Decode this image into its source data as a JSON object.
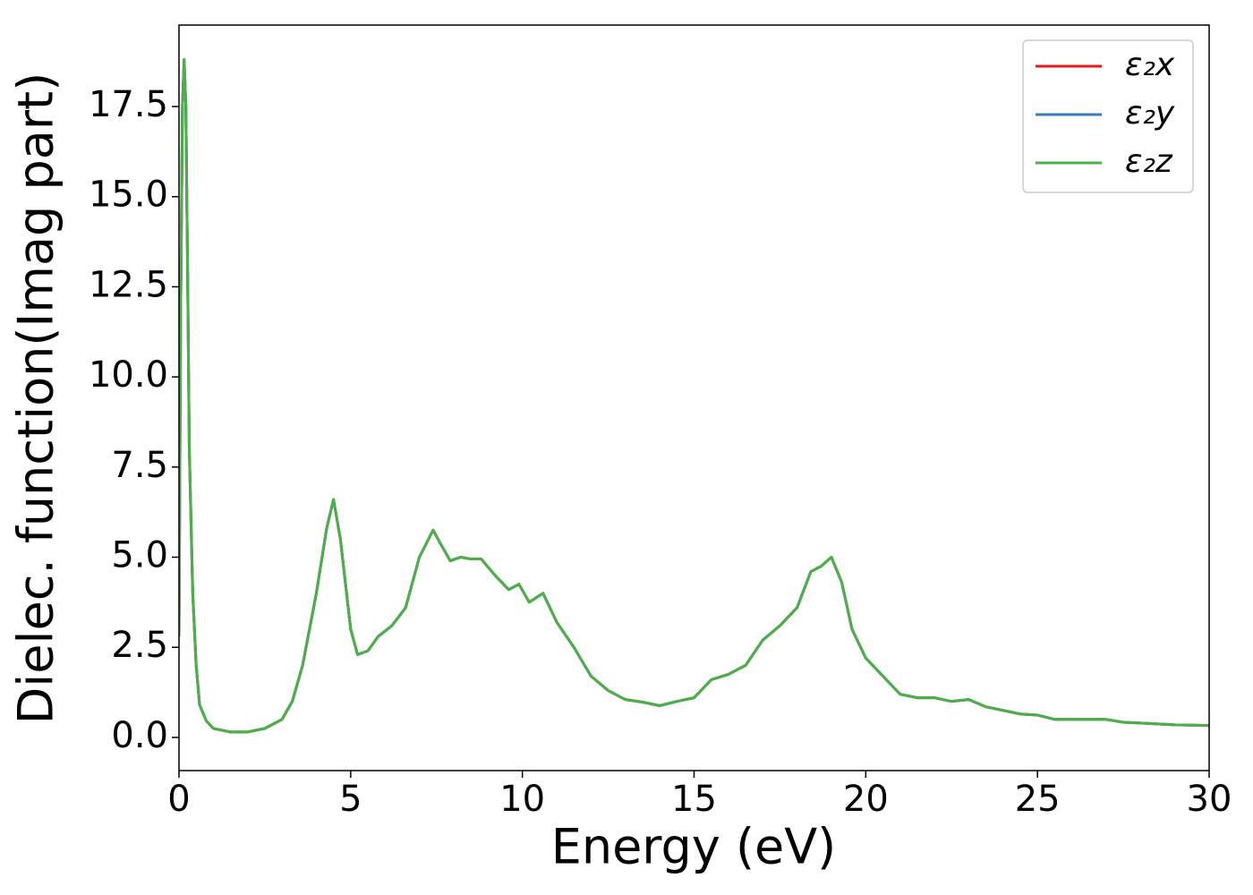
{
  "chart_data": {
    "type": "line",
    "xlabel": "Energy (eV)",
    "ylabel": "Dielec. function(Imag part)",
    "x": [
      0,
      0.05,
      0.1,
      0.15,
      0.2,
      0.25,
      0.3,
      0.4,
      0.5,
      0.6,
      0.8,
      1,
      1.5,
      2,
      2.5,
      3,
      3.3,
      3.6,
      4,
      4.3,
      4.5,
      4.7,
      5,
      5.2,
      5.5,
      5.8,
      6.2,
      6.6,
      7,
      7.4,
      7.6,
      7.9,
      8.2,
      8.5,
      8.8,
      9.2,
      9.6,
      9.9,
      10.2,
      10.6,
      11,
      11.5,
      12,
      12.5,
      13,
      13.5,
      14,
      14.5,
      15,
      15.5,
      16,
      16.5,
      17,
      17.5,
      18,
      18.4,
      18.7,
      19,
      19.3,
      19.6,
      20,
      20.5,
      21,
      21.5,
      22,
      22.5,
      23,
      23.5,
      24,
      24.5,
      25,
      25.5,
      26,
      26.5,
      27,
      27.5,
      28,
      29,
      30
    ],
    "series": [
      {
        "name": "ε₂x",
        "color": "#e41a1c",
        "values": [
          2.8,
          12,
          17.5,
          18.8,
          17.5,
          13,
          8,
          4,
          2,
          0.9,
          0.45,
          0.25,
          0.15,
          0.15,
          0.25,
          0.5,
          1.0,
          2.0,
          4.0,
          5.8,
          6.6,
          5.5,
          3.0,
          2.3,
          2.4,
          2.8,
          3.1,
          3.6,
          5.0,
          5.75,
          5.4,
          4.9,
          5.0,
          4.95,
          4.95,
          4.5,
          4.1,
          4.25,
          3.75,
          4.0,
          3.2,
          2.5,
          1.7,
          1.3,
          1.05,
          0.98,
          0.88,
          1.0,
          1.1,
          1.6,
          1.75,
          2.0,
          2.7,
          3.1,
          3.6,
          4.6,
          4.75,
          5.0,
          4.3,
          3.0,
          2.2,
          1.7,
          1.2,
          1.1,
          1.1,
          1.0,
          1.05,
          0.85,
          0.75,
          0.65,
          0.62,
          0.5,
          0.5,
          0.5,
          0.5,
          0.42,
          0.4,
          0.35,
          0.33
        ]
      },
      {
        "name": "ε₂y",
        "color": "#377eb8",
        "values": [
          2.8,
          12,
          17.5,
          18.8,
          17.5,
          13,
          8,
          4,
          2,
          0.9,
          0.45,
          0.25,
          0.15,
          0.15,
          0.25,
          0.5,
          1.0,
          2.0,
          4.0,
          5.8,
          6.6,
          5.5,
          3.0,
          2.3,
          2.4,
          2.8,
          3.1,
          3.6,
          5.0,
          5.75,
          5.4,
          4.9,
          5.0,
          4.95,
          4.95,
          4.5,
          4.1,
          4.25,
          3.75,
          4.0,
          3.2,
          2.5,
          1.7,
          1.3,
          1.05,
          0.98,
          0.88,
          1.0,
          1.1,
          1.6,
          1.75,
          2.0,
          2.7,
          3.1,
          3.6,
          4.6,
          4.75,
          5.0,
          4.3,
          3.0,
          2.2,
          1.7,
          1.2,
          1.1,
          1.1,
          1.0,
          1.05,
          0.85,
          0.75,
          0.65,
          0.62,
          0.5,
          0.5,
          0.5,
          0.5,
          0.42,
          0.4,
          0.35,
          0.33
        ]
      },
      {
        "name": "ε₂z",
        "color": "#4daf4a",
        "values": [
          2.8,
          12,
          17.5,
          18.8,
          17.5,
          13,
          8,
          4,
          2,
          0.9,
          0.45,
          0.25,
          0.15,
          0.15,
          0.25,
          0.5,
          1.0,
          2.0,
          4.0,
          5.8,
          6.6,
          5.5,
          3.0,
          2.3,
          2.4,
          2.8,
          3.1,
          3.6,
          5.0,
          5.75,
          5.4,
          4.9,
          5.0,
          4.95,
          4.95,
          4.5,
          4.1,
          4.25,
          3.75,
          4.0,
          3.2,
          2.5,
          1.7,
          1.3,
          1.05,
          0.98,
          0.88,
          1.0,
          1.1,
          1.6,
          1.75,
          2.0,
          2.7,
          3.1,
          3.6,
          4.6,
          4.75,
          5.0,
          4.3,
          3.0,
          2.2,
          1.7,
          1.2,
          1.1,
          1.1,
          1.0,
          1.05,
          0.85,
          0.75,
          0.65,
          0.62,
          0.5,
          0.5,
          0.5,
          0.5,
          0.42,
          0.4,
          0.35,
          0.33
        ]
      }
    ],
    "xlim": [
      0,
      30
    ],
    "xticks": [
      0,
      5,
      10,
      15,
      20,
      25,
      30
    ],
    "ylim": [
      -0.92,
      19.76
    ],
    "yticks": [
      {
        "value": 0,
        "label": "0.0"
      },
      2.5,
      {
        "value": 5,
        "label": "5.0"
      },
      7.5,
      {
        "value": 10,
        "label": "10.0"
      },
      12.5,
      {
        "value": 15,
        "label": "15.0"
      },
      17.5
    ],
    "legend": "upper right",
    "grid": false
  }
}
